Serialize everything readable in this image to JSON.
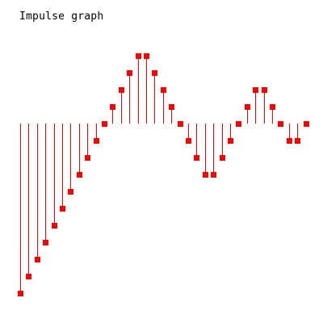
{
  "chart_data": {
    "type": "impulse",
    "title": "Impulse graph",
    "color": "#ff0000",
    "baseline": 0,
    "ylim": [
      -10,
      4
    ],
    "x": [
      0,
      1,
      2,
      3,
      4,
      5,
      6,
      7,
      8,
      9,
      10,
      11,
      12,
      13,
      14,
      15,
      16,
      17,
      18,
      19,
      20,
      21,
      22,
      23,
      24,
      25,
      26,
      27,
      28,
      29,
      30,
      31,
      32,
      33,
      34
    ],
    "values": [
      -10,
      -9,
      -8,
      -7,
      -6,
      -5,
      -4,
      -3,
      -2,
      -1,
      0,
      1,
      2,
      3,
      4,
      4,
      3,
      2,
      1,
      0,
      -1,
      -2,
      -3,
      -3,
      -2,
      -1,
      0,
      1,
      2,
      2,
      1,
      0,
      -1,
      -1,
      0
    ],
    "xlim": [
      0,
      34
    ],
    "grid": false,
    "legend": "none"
  }
}
